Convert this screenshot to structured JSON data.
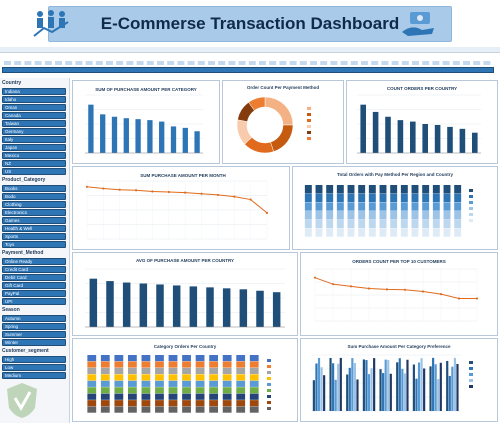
{
  "header": {
    "title": "E-Commerse Transaction Dashboard",
    "left_icon": "people-chart-icon",
    "right_icon": "cash-hand-icon"
  },
  "colors": {
    "banner": "#a9cbe9",
    "primary": "#2e75b6",
    "dark": "#1f4e79",
    "orange": "#e06b1f",
    "light_blue": "#9dc3e6"
  },
  "slicers": {
    "country": {
      "title": "Country",
      "items": [
        "Indiana",
        "Idaho",
        "Oman",
        "Canada",
        "Taiwan",
        "Germany",
        "Italy",
        "Japan",
        "Mexico",
        "NZ",
        "US"
      ]
    },
    "category": {
      "title": "Product_Category",
      "items": [
        "Books",
        "Bodo",
        "Clothing",
        "Electronics",
        "Games",
        "Health & Well",
        "Sports",
        "Toys"
      ]
    },
    "payment": {
      "title": "Payment_Method",
      "items": [
        "Online Ready",
        "Credit Card",
        "Debit Card",
        "Gift Card",
        "PayPal",
        "UPI"
      ]
    },
    "season": {
      "title": "Season",
      "items": [
        "Autumn",
        "Spring",
        "Summer",
        "Winter"
      ]
    },
    "customer_segment": {
      "title": "Customer_segment",
      "items": [
        "High",
        "Low",
        "Medium"
      ]
    }
  },
  "charts": {
    "sum_by_category": {
      "type": "bar",
      "title": "SUM OF PURCHASE AMOUNT PER CATEGORY",
      "values": [
        10,
        8,
        7.5,
        7.2,
        7,
        6.8,
        6.5,
        5.5,
        5.2,
        4.5
      ],
      "ylim": [
        0,
        12
      ]
    },
    "payment_donut": {
      "type": "pie",
      "title": "Order Count Per Payment Method",
      "values": [
        25,
        20,
        18,
        15,
        12,
        10
      ]
    },
    "count_by_country": {
      "type": "bar",
      "title": "COUNT ORDERS PER COUNTRY",
      "values": [
        10,
        8.5,
        7.5,
        6.8,
        6.5,
        6,
        5.8,
        5.4,
        5,
        4.2
      ],
      "ylim": [
        0,
        12
      ]
    },
    "sum_by_month": {
      "type": "line",
      "title": "SUM PURCHASE AMOUNT PER MONTH",
      "values": [
        9,
        8.7,
        8.5,
        8.4,
        8.2,
        8.1,
        8,
        7.8,
        7.6,
        7.3,
        6.8,
        4.5
      ],
      "ylim": [
        0,
        10
      ]
    },
    "pay_region_country": {
      "type": "bar",
      "title": "Total Orders with Pay Method Per Region and Country",
      "columns": 15,
      "bands": 6
    },
    "avg_by_country": {
      "type": "bar",
      "title": "AVG OF PURCHASE AMOUNT PER COUNTRY",
      "values": [
        10,
        9.5,
        9.2,
        9,
        8.8,
        8.6,
        8.4,
        8.2,
        8,
        7.8,
        7.5,
        7.2
      ],
      "ylim": [
        0,
        12
      ]
    },
    "orders_top_customers": {
      "type": "line",
      "title": "ORDERS COUNT PER TOP 10 CUSTOMERS",
      "values": [
        10,
        8.5,
        8,
        7.5,
        7.3,
        7.2,
        6.8,
        6.2,
        5.2,
        5.2
      ],
      "ylim": [
        0,
        12
      ]
    },
    "category_per_country": {
      "type": "bar",
      "title": "Category Orders Per Country",
      "columns": 13,
      "bands": 9
    },
    "sum_by_category_pref": {
      "type": "bar",
      "title": "Sum Purchase Amount Per Category Preference",
      "groups": 9,
      "per_group": 5
    }
  }
}
